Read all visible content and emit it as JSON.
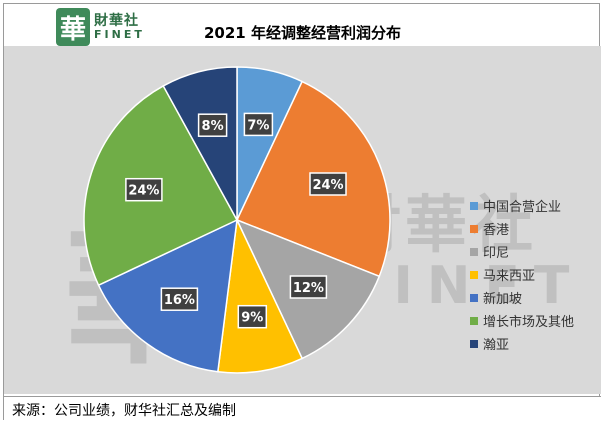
{
  "brand": {
    "logo_char": "華",
    "name_cn": "財華社",
    "name_en": "FINET"
  },
  "source_note": "来源：公司业绩，财华社汇总及编制",
  "chart_data": {
    "type": "pie",
    "title": "2021 年经调整经营利润分布",
    "start_angle_deg": 0,
    "direction": "clockwise",
    "legend_position": "right",
    "slices": [
      {
        "label": "中国合营企业",
        "value": 7,
        "display": "7%",
        "color": "#5b9bd5"
      },
      {
        "label": "香港",
        "value": 24,
        "display": "24%",
        "color": "#ed7d31"
      },
      {
        "label": "印尼",
        "value": 12,
        "display": "12%",
        "color": "#a5a5a5"
      },
      {
        "label": "马来西亚",
        "value": 9,
        "display": "9%",
        "color": "#ffc000"
      },
      {
        "label": "新加坡",
        "value": 16,
        "display": "16%",
        "color": "#4472c4"
      },
      {
        "label": "增长市场及其他",
        "value": 24,
        "display": "24%",
        "color": "#70ad47"
      },
      {
        "label": "瀚亚",
        "value": 8,
        "display": "8%",
        "color": "#264478"
      }
    ]
  }
}
